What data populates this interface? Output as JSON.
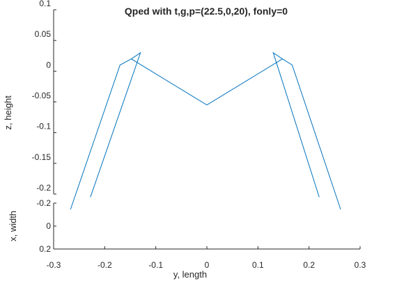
{
  "chart_data": {
    "type": "line",
    "title": "Qped with t,g,p=(22.5,0,20), fonly=0",
    "xlabel": "y, length",
    "zlabel": "z, height",
    "depthlabel": "x, width",
    "xlim": [
      -0.3,
      0.3
    ],
    "zlim": [
      -0.2,
      0.1
    ],
    "depthlim": [
      -0.2,
      0.2
    ],
    "x_ticks": [
      "-0.3",
      "-0.2",
      "-0.1",
      "0",
      "0.1",
      "0.2",
      "0.3"
    ],
    "z_ticks": [
      "0.1",
      "0.05",
      "0",
      "-0.05",
      "-0.1",
      "-0.15",
      "-0.2"
    ],
    "depth_ticks": [
      "-0.2",
      "0",
      "0.2"
    ],
    "grid": false,
    "line_color": "#0072bd",
    "series": [
      {
        "x": [
          -0.228,
          -0.13,
          -0.148,
          0,
          0.148,
          0.13,
          0.22
        ],
        "z": [
          -0.205,
          0.03,
          0.02,
          -0.055,
          0.02,
          0.03,
          -0.205
        ]
      },
      {
        "x": [
          -0.267,
          -0.17,
          -0.148
        ],
        "z": [
          -0.225,
          0.01,
          0.02
        ]
      },
      {
        "x": [
          0.148,
          0.167,
          0.262
        ],
        "z": [
          0.02,
          0.01,
          -0.225
        ]
      }
    ]
  }
}
